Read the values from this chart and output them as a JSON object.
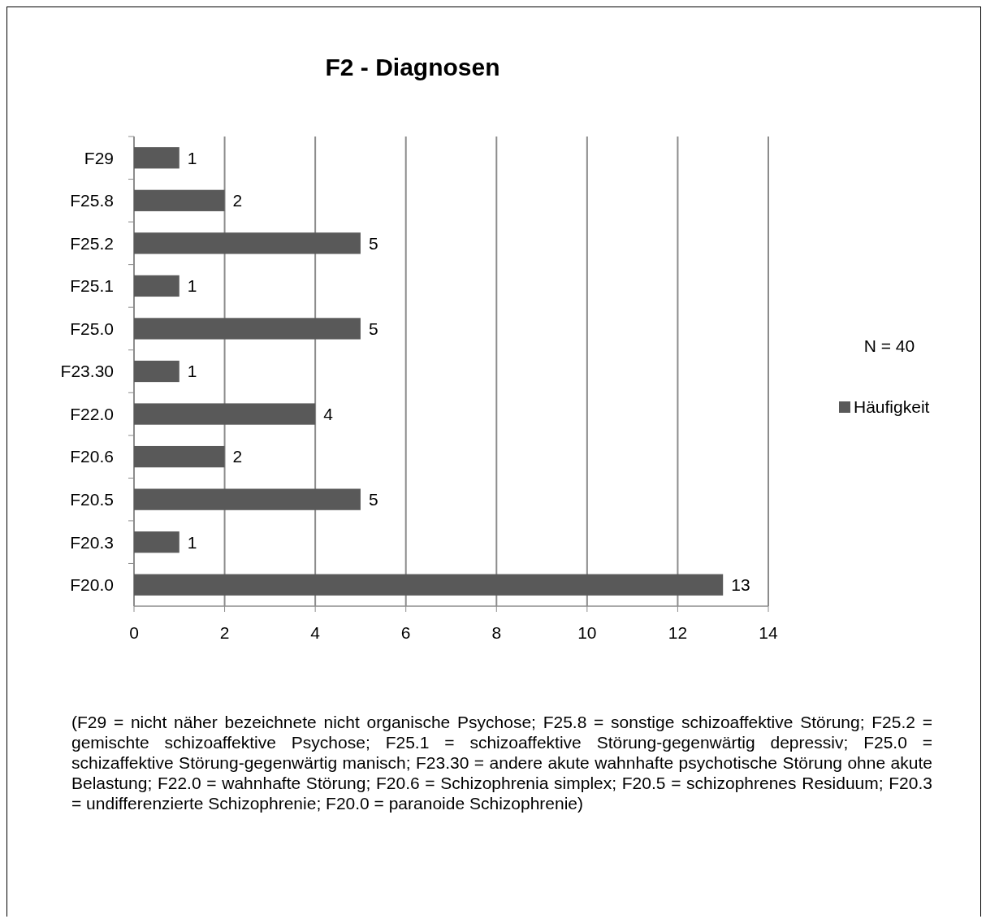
{
  "chart_data": {
    "type": "bar",
    "orientation": "horizontal",
    "title": "F2 - Diagnosen",
    "categories": [
      "F29",
      "F25.8",
      "F25.2",
      "F25.1",
      "F25.0",
      "F23.30",
      "F22.0",
      "F20.6",
      "F20.5",
      "F20.3",
      "F20.0"
    ],
    "series": [
      {
        "name": "Häufigkeit",
        "color": "#595959",
        "values": [
          1,
          2,
          5,
          1,
          5,
          1,
          4,
          2,
          5,
          1,
          13
        ]
      }
    ],
    "xlim": [
      0,
      14
    ],
    "xticks": [
      0,
      2,
      4,
      6,
      8,
      10,
      12,
      14
    ],
    "grid": "x",
    "legend": "right",
    "data_labels": true,
    "annotations": [
      "N = 40",
      "(F29 = nicht näher bezeichnete nicht organische Psychose; F25.8 = sonstige schizoaffektive Störung; F25.2 = gemischte schizoaffektive Psychose; F25.1 = schizoaffektive Störung-gegenwärtig depressiv; F25.0 = schizaffektive Störung-gegenwärtig manisch; F23.30 = andere akute wahnhafte psychotische Störung ohne akute Belastung; F22.0 = wahnhafte Störung; F20.6 = Schizophrenia simplex; F20.5 = schizophrenes Residuum; F20.3 = undifferenzierte Schizophrenie; F20.0 = paranoide Schizophrenie)"
    ]
  }
}
